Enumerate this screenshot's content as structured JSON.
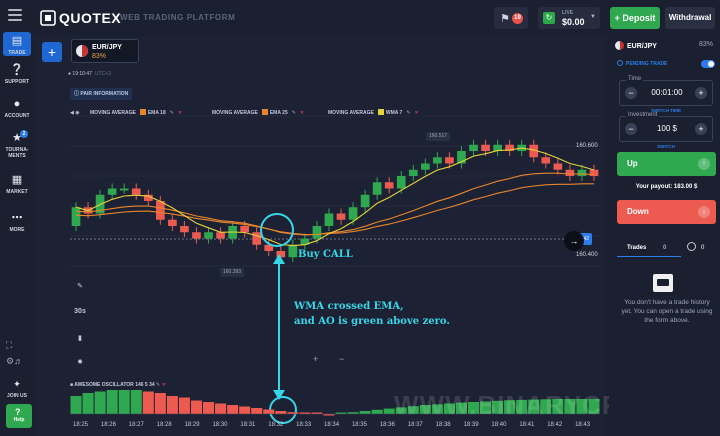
{
  "header": {
    "logo_text": "QUOTEX",
    "platform_label": "WEB TRADING PLATFORM",
    "notifications_count": "19",
    "account_mode": "LIVE",
    "balance": "$0.00",
    "deposit_label": "Deposit",
    "withdrawal_label": "Withdrawal"
  },
  "sidebar": {
    "items": [
      {
        "label": "TRADE",
        "icon": "chart-icon"
      },
      {
        "label": "SUPPORT",
        "icon": "question-icon"
      },
      {
        "label": "ACCOUNT",
        "icon": "user-icon"
      },
      {
        "label": "TOURNA-MENTS",
        "icon": "trophy-icon",
        "badge": "2"
      },
      {
        "label": "MARKET",
        "icon": "cart-icon"
      },
      {
        "label": "MORE",
        "icon": "dots-icon"
      }
    ],
    "join_us_label": "JOIN US",
    "help_label": "Help"
  },
  "chart": {
    "asset_name": "EUR/JPY",
    "asset_payout": "83%",
    "time_readout": "19:10:47",
    "time_zone": "UTC+3",
    "pair_info_label": "PAIR INFORMATION",
    "indicators": [
      {
        "name": "MOVING AVERAGE",
        "type": "EMA",
        "period": "18",
        "color": "#e8852c"
      },
      {
        "name": "MOVING AVERAGE",
        "type": "EMA",
        "period": "25",
        "color": "#e8852c"
      },
      {
        "name": "MOVING AVERAGE",
        "type": "WMA",
        "period": "7",
        "color": "#e6d23a"
      }
    ],
    "tool_interval": "30s",
    "price_high": "160.600",
    "price_low": "160.400",
    "current_price_tag": "160.542",
    "high_box": "160.517",
    "low_box": "160.393",
    "ao_label": "AWESOME OSCILLATOR",
    "ao_params": [
      "146",
      "5",
      "34"
    ],
    "time_labels": [
      "18:25",
      "18:26",
      "18:27",
      "18:28",
      "18:29",
      "18:30",
      "18:31",
      "18:32",
      "18:33",
      "18:34",
      "18:35",
      "18:36",
      "18:37",
      "18:38",
      "18:39",
      "18:40",
      "18:41",
      "18:42",
      "18:43"
    ],
    "zoom_plus": "+",
    "zoom_minus": "−",
    "annotation_buy": "Buy CALL",
    "annotation_reason_1": "WMA crossed EMA,",
    "annotation_reason_2": "and AO is green above zero.",
    "watermark": "WWW.BINARYCRYPTO.COM",
    "colors": {
      "up": "#2fa84f",
      "down": "#ec5a50",
      "wma": "#e6d23a",
      "ema": "#e8852c",
      "annotation": "#38d5e8"
    }
  },
  "chart_data": {
    "type": "candlestick",
    "candles": [
      [
        160.46,
        160.49
      ],
      [
        160.49,
        160.48
      ],
      [
        160.48,
        160.51
      ],
      [
        160.51,
        160.52
      ],
      [
        160.52,
        160.52
      ],
      [
        160.52,
        160.51
      ],
      [
        160.51,
        160.5
      ],
      [
        160.5,
        160.47
      ],
      [
        160.47,
        160.46
      ],
      [
        160.46,
        160.45
      ],
      [
        160.45,
        160.44
      ],
      [
        160.44,
        160.45
      ],
      [
        160.45,
        160.44
      ],
      [
        160.44,
        160.46
      ],
      [
        160.46,
        160.45
      ],
      [
        160.45,
        160.43
      ],
      [
        160.43,
        160.42
      ],
      [
        160.42,
        160.41
      ],
      [
        160.41,
        160.43
      ],
      [
        160.43,
        160.44
      ],
      [
        160.44,
        160.46
      ],
      [
        160.46,
        160.48
      ],
      [
        160.48,
        160.47
      ],
      [
        160.47,
        160.49
      ],
      [
        160.49,
        160.51
      ],
      [
        160.51,
        160.53
      ],
      [
        160.53,
        160.52
      ],
      [
        160.52,
        160.54
      ],
      [
        160.54,
        160.55
      ],
      [
        160.55,
        160.56
      ],
      [
        160.56,
        160.57
      ],
      [
        160.57,
        160.56
      ],
      [
        160.56,
        160.58
      ],
      [
        160.58,
        160.59
      ],
      [
        160.59,
        160.58
      ],
      [
        160.58,
        160.59
      ],
      [
        160.59,
        160.58
      ],
      [
        160.58,
        160.59
      ],
      [
        160.59,
        160.57
      ],
      [
        160.57,
        160.56
      ],
      [
        160.56,
        160.55
      ],
      [
        160.55,
        160.54
      ],
      [
        160.54,
        160.55
      ],
      [
        160.55,
        160.54
      ]
    ],
    "ao": [
      0.6,
      0.7,
      0.75,
      0.8,
      0.8,
      0.8,
      0.75,
      0.7,
      0.6,
      0.55,
      0.45,
      0.4,
      0.35,
      0.3,
      0.25,
      0.2,
      0.15,
      0.1,
      0.06,
      0.03,
      0.0,
      -0.02,
      0.02,
      0.06,
      0.1,
      0.14,
      0.18,
      0.22,
      0.26,
      0.3,
      0.32,
      0.35,
      0.38,
      0.4,
      0.42,
      0.44,
      0.46,
      0.47,
      0.48,
      0.49,
      0.5,
      0.5,
      0.5,
      0.5
    ],
    "ao_colors": [
      "up",
      "up",
      "up",
      "up",
      "up",
      "up",
      "down",
      "down",
      "down",
      "down",
      "down",
      "down",
      "down",
      "down",
      "down",
      "down",
      "down",
      "down",
      "down",
      "down",
      "down",
      "down",
      "up",
      "up",
      "up",
      "up",
      "up",
      "up",
      "up",
      "up",
      "up",
      "up",
      "up",
      "up",
      "up",
      "up",
      "up",
      "up",
      "up",
      "up",
      "up",
      "up",
      "up",
      "up"
    ],
    "ylim": [
      160.38,
      160.62
    ]
  },
  "right_panel": {
    "asset_name": "EUR/JPY",
    "asset_pct": "83%",
    "pending_trade_label": "PENDING TRADE",
    "time_label": "Time",
    "time_value": "00:01:00",
    "switch_time_label": "SWITCH TIME",
    "investment_label": "Investment",
    "investment_value": "100 $",
    "switch_label": "SWITCH",
    "up_label": "Up",
    "payout_label": "Your payout: 183.00 $",
    "down_label": "Down",
    "trades_tab_label": "Trades",
    "trades_count": "0",
    "clock_count": "0",
    "empty_message": "You don't have a trade history yet. You can open a trade using the form above."
  }
}
